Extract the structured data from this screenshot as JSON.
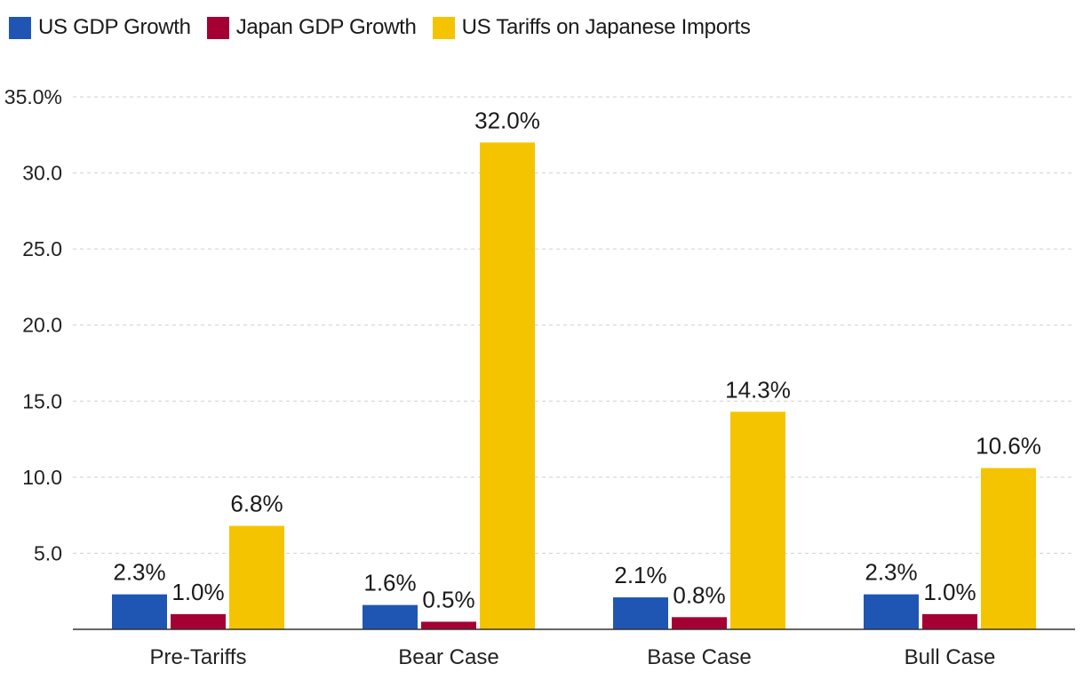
{
  "colors": {
    "us_gdp": "#1f56b4",
    "japan_gdp": "#a50034",
    "tariffs": "#f5c400",
    "grid": "#d0d0d0",
    "axis": "#333333"
  },
  "chart_data": {
    "type": "bar",
    "title": "",
    "xlabel": "",
    "ylabel": "",
    "ylim": [
      0,
      35
    ],
    "yticks": [
      5,
      10,
      15,
      20,
      25,
      30,
      35
    ],
    "ytick_labels": [
      "5.0",
      "10.0",
      "15.0",
      "20.0",
      "25.0",
      "30.0",
      "35.0%"
    ],
    "grid": true,
    "legend_position": "top-left",
    "categories": [
      "Pre-Tariffs",
      "Bear Case",
      "Base Case",
      "Bull Case"
    ],
    "series": [
      {
        "name": "US GDP Growth",
        "color_key": "us_gdp",
        "values": [
          2.3,
          1.6,
          2.1,
          2.3
        ],
        "labels": [
          "2.3%",
          "1.6%",
          "2.1%",
          "2.3%"
        ]
      },
      {
        "name": "Japan GDP Growth",
        "color_key": "japan_gdp",
        "values": [
          1.0,
          0.5,
          0.8,
          1.0
        ],
        "labels": [
          "1.0%",
          "0.5%",
          "0.8%",
          "1.0%"
        ]
      },
      {
        "name": "US Tariffs on Japanese Imports",
        "color_key": "tariffs",
        "values": [
          6.8,
          32.0,
          14.3,
          10.6
        ],
        "labels": [
          "6.8%",
          "32.0%",
          "14.3%",
          "10.6%"
        ]
      }
    ]
  }
}
